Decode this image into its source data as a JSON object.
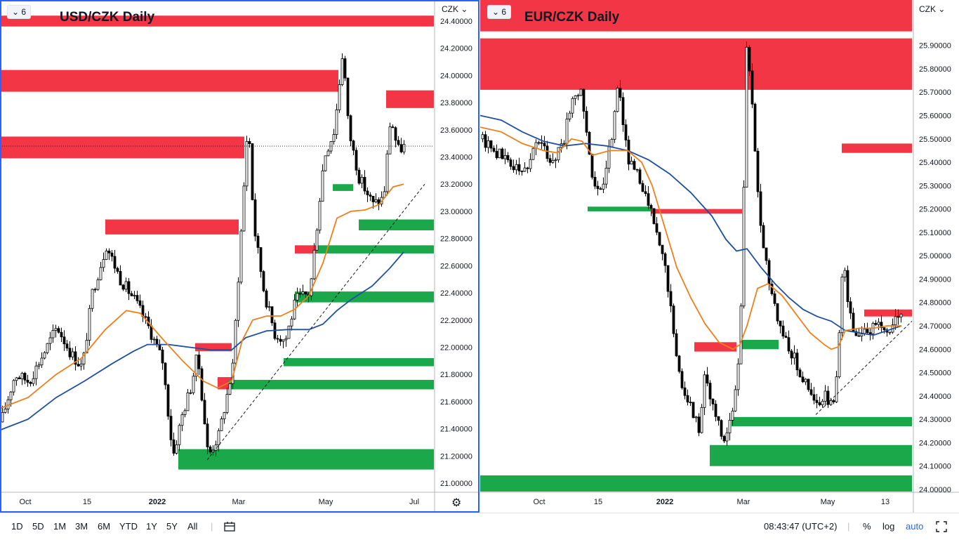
{
  "chart_data": [
    {
      "type": "line",
      "title": "USD/CZK Daily",
      "interval_badge": "6",
      "currency_label": "CZK",
      "x_ticks": [
        "Oct",
        "15",
        "2022",
        "Mar",
        "May",
        "Jul"
      ],
      "ylim": [
        21.0,
        24.4
      ],
      "y_ticks": [
        "24.40000",
        "24.20000",
        "24.00000",
        "23.80000",
        "23.60000",
        "23.40000",
        "23.20000",
        "23.00000",
        "22.80000",
        "22.60000",
        "22.40000",
        "22.20000",
        "22.00000",
        "21.80000",
        "21.60000",
        "21.40000",
        "21.20000",
        "21.00000"
      ],
      "price_series": {
        "name": "",
        "x": [
          0,
          20,
          40,
          60,
          80,
          100,
          116,
          130,
          150,
          170,
          190,
          210,
          230,
          245,
          258,
          270,
          280,
          295,
          310,
          330,
          345,
          352,
          360,
          375,
          390,
          405,
          420,
          440,
          460,
          475,
          487,
          495,
          510,
          530,
          545,
          555,
          565,
          575
        ],
        "y": [
          21.45,
          21.8,
          21.75,
          21.95,
          22.15,
          21.95,
          21.85,
          22.4,
          22.75,
          22.5,
          22.35,
          22.15,
          21.9,
          21.2,
          21.5,
          21.7,
          21.95,
          21.2,
          21.35,
          21.85,
          23.1,
          23.7,
          22.9,
          22.4,
          22.1,
          22.05,
          22.35,
          22.4,
          23.4,
          23.6,
          24.2,
          23.6,
          23.25,
          23.05,
          23.1,
          23.7,
          23.45,
          23.48
        ]
      },
      "ma_fast": {
        "name": "",
        "color": "#ef7f1a",
        "x": [
          0,
          40,
          80,
          116,
          150,
          180,
          200,
          230,
          260,
          290,
          310,
          330,
          345,
          360,
          380,
          400,
          420,
          440,
          460,
          480,
          500,
          520,
          540,
          560,
          575
        ],
        "y": [
          21.55,
          21.63,
          21.8,
          21.92,
          22.13,
          22.27,
          22.25,
          22.07,
          21.9,
          21.75,
          21.7,
          21.75,
          22.05,
          22.2,
          22.23,
          22.23,
          22.28,
          22.38,
          22.62,
          22.95,
          23.0,
          23.01,
          23.05,
          23.18,
          23.2
        ]
      },
      "ma_slow": {
        "name": "",
        "color": "#1e4fa0",
        "x": [
          0,
          40,
          80,
          120,
          160,
          190,
          210,
          240,
          270,
          300,
          330,
          350,
          380,
          410,
          440,
          460,
          480,
          500,
          530,
          555,
          575
        ],
        "y": [
          21.39,
          21.47,
          21.63,
          21.75,
          21.88,
          21.97,
          22.02,
          22.02,
          22.0,
          21.98,
          21.98,
          22.07,
          22.12,
          22.13,
          22.13,
          22.17,
          22.27,
          22.35,
          22.45,
          22.58,
          22.7
        ]
      },
      "trendline": {
        "x": [
          295,
          605
        ],
        "y": [
          21.17,
          23.2
        ]
      },
      "last_price": 23.48,
      "supply_zones": [
        {
          "x1": 0,
          "x2": 618,
          "y_low": 24.36,
          "y_high": 24.44
        },
        {
          "x1": 0,
          "x2": 482,
          "y_low": 23.88,
          "y_high": 24.04
        },
        {
          "x1": 550,
          "x2": 618,
          "y_low": 23.76,
          "y_high": 23.89
        },
        {
          "x1": 0,
          "x2": 348,
          "y_low": 23.39,
          "y_high": 23.55
        },
        {
          "x1": 150,
          "x2": 340,
          "y_low": 22.83,
          "y_high": 22.94
        },
        {
          "x1": 420,
          "x2": 452,
          "y_low": 22.69,
          "y_high": 22.75
        },
        {
          "x1": 278,
          "x2": 330,
          "y_low": 21.97,
          "y_high": 22.03
        },
        {
          "x1": 310,
          "x2": 330,
          "y_low": 21.69,
          "y_high": 21.78
        }
      ],
      "demand_zones": [
        {
          "x1": 474,
          "x2": 503,
          "y_low": 23.15,
          "y_high": 23.2
        },
        {
          "x1": 511,
          "x2": 618,
          "y_low": 22.86,
          "y_high": 22.94
        },
        {
          "x1": 452,
          "x2": 618,
          "y_low": 22.69,
          "y_high": 22.75
        },
        {
          "x1": 420,
          "x2": 618,
          "y_low": 22.33,
          "y_high": 22.41
        },
        {
          "x1": 404,
          "x2": 618,
          "y_low": 21.86,
          "y_high": 21.92
        },
        {
          "x1": 325,
          "x2": 618,
          "y_low": 21.69,
          "y_high": 21.76
        },
        {
          "x1": 254,
          "x2": 618,
          "y_low": 21.1,
          "y_high": 21.25
        }
      ]
    },
    {
      "type": "line",
      "title": "EUR/CZK Daily",
      "interval_badge": "6",
      "currency_label": "CZK",
      "x_ticks": [
        "Oct",
        "15",
        "2022",
        "Mar",
        "May",
        "13"
      ],
      "ylim": [
        24.0,
        25.95
      ],
      "y_ticks": [
        "25.90000",
        "25.80000",
        "25.70000",
        "25.60000",
        "25.50000",
        "25.40000",
        "25.30000",
        "25.20000",
        "25.10000",
        "25.00000",
        "24.90000",
        "24.80000",
        "24.70000",
        "24.60000",
        "24.50000",
        "24.40000",
        "24.30000",
        "24.20000",
        "24.10000",
        "24.00000"
      ],
      "price_series": {
        "name": "",
        "x": [
          0,
          20,
          40,
          60,
          80,
          100,
          118,
          128,
          140,
          150,
          160,
          172,
          185,
          195,
          210,
          230,
          250,
          265,
          280,
          300,
          310,
          318,
          330,
          345,
          360,
          368,
          372,
          378,
          385,
          395,
          410,
          425,
          440,
          455,
          470,
          480,
          490,
          500,
          508,
          515,
          525,
          535,
          545,
          555,
          565,
          575,
          585,
          595,
          600
        ],
        "y": [
          25.5,
          25.45,
          25.4,
          25.35,
          25.5,
          25.4,
          25.5,
          25.65,
          25.72,
          25.55,
          25.3,
          25.25,
          25.5,
          25.75,
          25.4,
          25.3,
          25.1,
          24.9,
          24.5,
          24.35,
          24.25,
          24.5,
          24.35,
          24.2,
          24.35,
          24.6,
          25.0,
          25.9,
          25.7,
          25.2,
          24.9,
          24.7,
          24.6,
          24.5,
          24.4,
          24.35,
          24.4,
          24.35,
          24.5,
          25.0,
          24.75,
          24.65,
          24.7,
          24.68,
          24.72,
          24.68,
          24.7,
          24.75,
          24.73
        ]
      },
      "ma_fast": {
        "name": "",
        "color": "#ef7f1a",
        "x": [
          0,
          30,
          60,
          90,
          110,
          130,
          145,
          160,
          185,
          210,
          230,
          245,
          260,
          280,
          300,
          320,
          340,
          360,
          370,
          380,
          395,
          410,
          430,
          450,
          470,
          490,
          500,
          510,
          520,
          540,
          560,
          580,
          600
        ],
        "y": [
          25.55,
          25.53,
          25.48,
          25.45,
          25.44,
          25.5,
          25.49,
          25.43,
          25.45,
          25.45,
          25.4,
          25.3,
          25.15,
          24.95,
          24.82,
          24.71,
          24.63,
          24.6,
          24.62,
          24.7,
          24.86,
          24.88,
          24.83,
          24.75,
          24.67,
          24.62,
          24.6,
          24.61,
          24.68,
          24.69,
          24.69,
          24.7,
          24.7
        ]
      },
      "ma_slow": {
        "name": "",
        "color": "#1e4fa0",
        "x": [
          0,
          30,
          60,
          90,
          120,
          150,
          180,
          210,
          240,
          270,
          300,
          330,
          350,
          365,
          380,
          400,
          420,
          440,
          460,
          480,
          500,
          520,
          540,
          560,
          580,
          600
        ],
        "y": [
          25.6,
          25.58,
          25.53,
          25.49,
          25.47,
          25.48,
          25.47,
          25.45,
          25.41,
          25.35,
          25.27,
          25.17,
          25.07,
          25.02,
          25.03,
          24.95,
          24.88,
          24.82,
          24.77,
          24.74,
          24.72,
          24.68,
          24.67,
          24.66,
          24.68,
          24.7
        ]
      },
      "trendline": {
        "x": [
          478,
          615
        ],
        "y": [
          24.32,
          24.72
        ]
      },
      "supply_zones": [
        {
          "x1": 0,
          "x2": 615,
          "y_low": 25.96,
          "y_high": 26.1
        },
        {
          "x1": 0,
          "x2": 615,
          "y_low": 25.71,
          "y_high": 25.93
        },
        {
          "x1": 515,
          "x2": 615,
          "y_low": 25.44,
          "y_high": 25.48
        },
        {
          "x1": 244,
          "x2": 373,
          "y_low": 25.18,
          "y_high": 25.2
        },
        {
          "x1": 547,
          "x2": 615,
          "y_low": 24.74,
          "y_high": 24.77
        },
        {
          "x1": 305,
          "x2": 365,
          "y_low": 24.59,
          "y_high": 24.63
        }
      ],
      "demand_zones": [
        {
          "x1": 153,
          "x2": 243,
          "y_low": 25.19,
          "y_high": 25.21
        },
        {
          "x1": 370,
          "x2": 425,
          "y_low": 24.6,
          "y_high": 24.64
        },
        {
          "x1": 358,
          "x2": 615,
          "y_low": 24.27,
          "y_high": 24.31
        },
        {
          "x1": 327,
          "x2": 615,
          "y_low": 24.1,
          "y_high": 24.19
        },
        {
          "x1": 0,
          "x2": 615,
          "y_low": 23.98,
          "y_high": 24.06
        }
      ]
    }
  ],
  "toolbar": {
    "ranges": [
      "1D",
      "5D",
      "1M",
      "3M",
      "6M",
      "YTD",
      "1Y",
      "5Y",
      "All"
    ],
    "time": "08:43:47 (UTC+2)",
    "percent_label": "%",
    "log_label": "log",
    "auto_label": "auto",
    "icons": [
      "compare-icon",
      "gear-icon",
      "fullscreen-icon"
    ]
  },
  "colors": {
    "supply": "#f23645",
    "demand": "#089981",
    "demand_fill": "#1aa84a",
    "accent": "#2962ff"
  }
}
